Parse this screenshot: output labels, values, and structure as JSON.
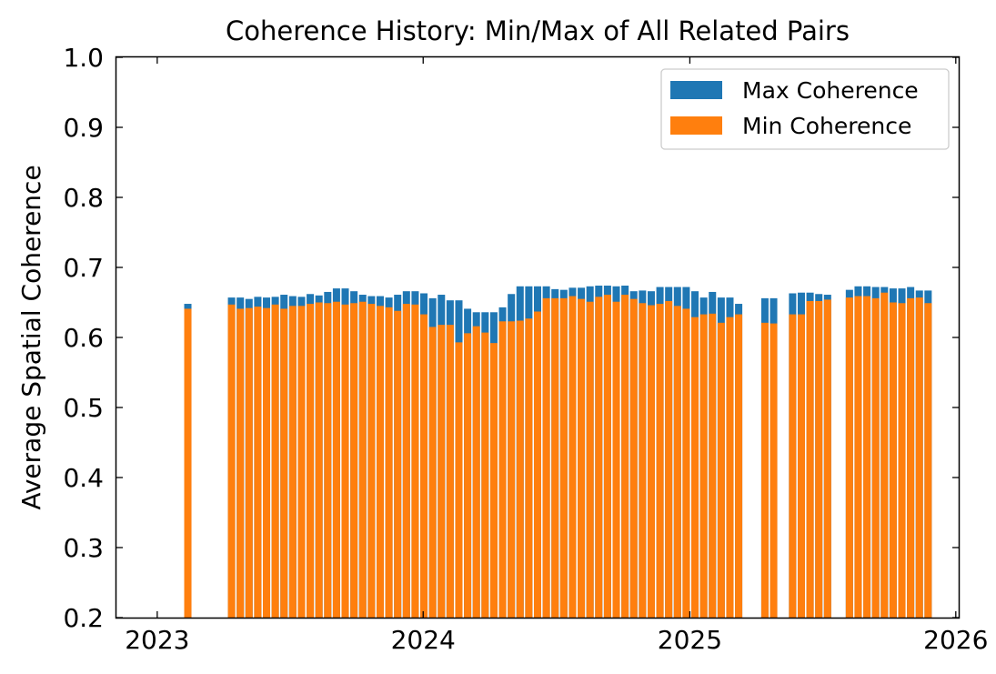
{
  "chart_data": {
    "type": "bar",
    "stacked_overlay": true,
    "title": "Coherence History: Min/Max of All Related Pairs",
    "xlabel": "",
    "ylabel": "Average Spatial Coherence",
    "ylim": [
      0.2,
      1.0
    ],
    "xlim": [
      "2022-11-06",
      "2026-01-05"
    ],
    "x_tick_labels": [
      "2023",
      "2024",
      "2025",
      "2026"
    ],
    "x_ticks": [
      "2023-01-01",
      "2024-01-01",
      "2025-01-01",
      "2026-01-01"
    ],
    "y_ticks": [
      0.2,
      0.3,
      0.4,
      0.5,
      0.6,
      0.7,
      0.8,
      0.9,
      1.0
    ],
    "y_tick_labels": [
      "0.2",
      "0.3",
      "0.4",
      "0.5",
      "0.6",
      "0.7",
      "0.8",
      "0.9",
      "1.0"
    ],
    "grid": false,
    "legend_position": "top-right",
    "colors": {
      "max": "#1f77b4",
      "min": "#ff7f0e"
    },
    "x": [
      "2023-02-12",
      "2023-04-13",
      "2023-04-25",
      "2023-05-07",
      "2023-05-19",
      "2023-05-31",
      "2023-06-12",
      "2023-06-24",
      "2023-07-06",
      "2023-07-18",
      "2023-07-30",
      "2023-08-11",
      "2023-08-23",
      "2023-09-04",
      "2023-09-16",
      "2023-09-28",
      "2023-10-10",
      "2023-10-22",
      "2023-11-03",
      "2023-11-15",
      "2023-11-27",
      "2023-12-09",
      "2023-12-21",
      "2024-01-02",
      "2024-01-14",
      "2024-01-26",
      "2024-02-07",
      "2024-02-19",
      "2024-03-02",
      "2024-03-14",
      "2024-03-26",
      "2024-04-07",
      "2024-04-19",
      "2024-05-01",
      "2024-05-13",
      "2024-05-25",
      "2024-06-06",
      "2024-06-18",
      "2024-06-30",
      "2024-07-12",
      "2024-07-24",
      "2024-08-05",
      "2024-08-17",
      "2024-08-29",
      "2024-09-10",
      "2024-09-22",
      "2024-10-04",
      "2024-10-16",
      "2024-10-28",
      "2024-11-09",
      "2024-11-21",
      "2024-12-03",
      "2024-12-15",
      "2024-12-27",
      "2025-01-08",
      "2025-01-20",
      "2025-02-01",
      "2025-02-13",
      "2025-02-25",
      "2025-03-09",
      "2025-04-14",
      "2025-04-26",
      "2025-05-22",
      "2025-06-03",
      "2025-06-15",
      "2025-06-27",
      "2025-07-09",
      "2025-08-08",
      "2025-08-20",
      "2025-09-01",
      "2025-09-13",
      "2025-09-25",
      "2025-10-07",
      "2025-10-19",
      "2025-10-31",
      "2025-11-12",
      "2025-11-24"
    ],
    "series": [
      {
        "name": "Max Coherence",
        "values": [
          0.648,
          0.657,
          0.657,
          0.655,
          0.658,
          0.657,
          0.658,
          0.661,
          0.659,
          0.658,
          0.662,
          0.66,
          0.665,
          0.67,
          0.67,
          0.666,
          0.661,
          0.659,
          0.659,
          0.657,
          0.661,
          0.666,
          0.666,
          0.663,
          0.656,
          0.661,
          0.653,
          0.653,
          0.641,
          0.636,
          0.636,
          0.636,
          0.643,
          0.662,
          0.673,
          0.673,
          0.673,
          0.673,
          0.669,
          0.668,
          0.671,
          0.671,
          0.673,
          0.674,
          0.674,
          0.673,
          0.674,
          0.666,
          0.667,
          0.666,
          0.672,
          0.672,
          0.672,
          0.672,
          0.666,
          0.657,
          0.665,
          0.657,
          0.657,
          0.648,
          0.656,
          0.656,
          0.663,
          0.664,
          0.664,
          0.662,
          0.661,
          0.668,
          0.673,
          0.673,
          0.672,
          0.672,
          0.67,
          0.67,
          0.672,
          0.667,
          0.667
        ]
      },
      {
        "name": "Min Coherence",
        "values": [
          0.641,
          0.647,
          0.641,
          0.642,
          0.644,
          0.642,
          0.647,
          0.641,
          0.645,
          0.645,
          0.648,
          0.65,
          0.649,
          0.651,
          0.647,
          0.649,
          0.651,
          0.648,
          0.645,
          0.643,
          0.638,
          0.648,
          0.647,
          0.633,
          0.615,
          0.618,
          0.618,
          0.593,
          0.606,
          0.616,
          0.607,
          0.592,
          0.623,
          0.623,
          0.624,
          0.627,
          0.637,
          0.656,
          0.656,
          0.656,
          0.659,
          0.655,
          0.651,
          0.658,
          0.661,
          0.651,
          0.661,
          0.655,
          0.649,
          0.646,
          0.648,
          0.652,
          0.645,
          0.641,
          0.629,
          0.633,
          0.634,
          0.621,
          0.629,
          0.633,
          0.621,
          0.62,
          0.633,
          0.633,
          0.652,
          0.652,
          0.654,
          0.657,
          0.659,
          0.659,
          0.656,
          0.664,
          0.65,
          0.649,
          0.656,
          0.657,
          0.649
        ]
      }
    ]
  }
}
